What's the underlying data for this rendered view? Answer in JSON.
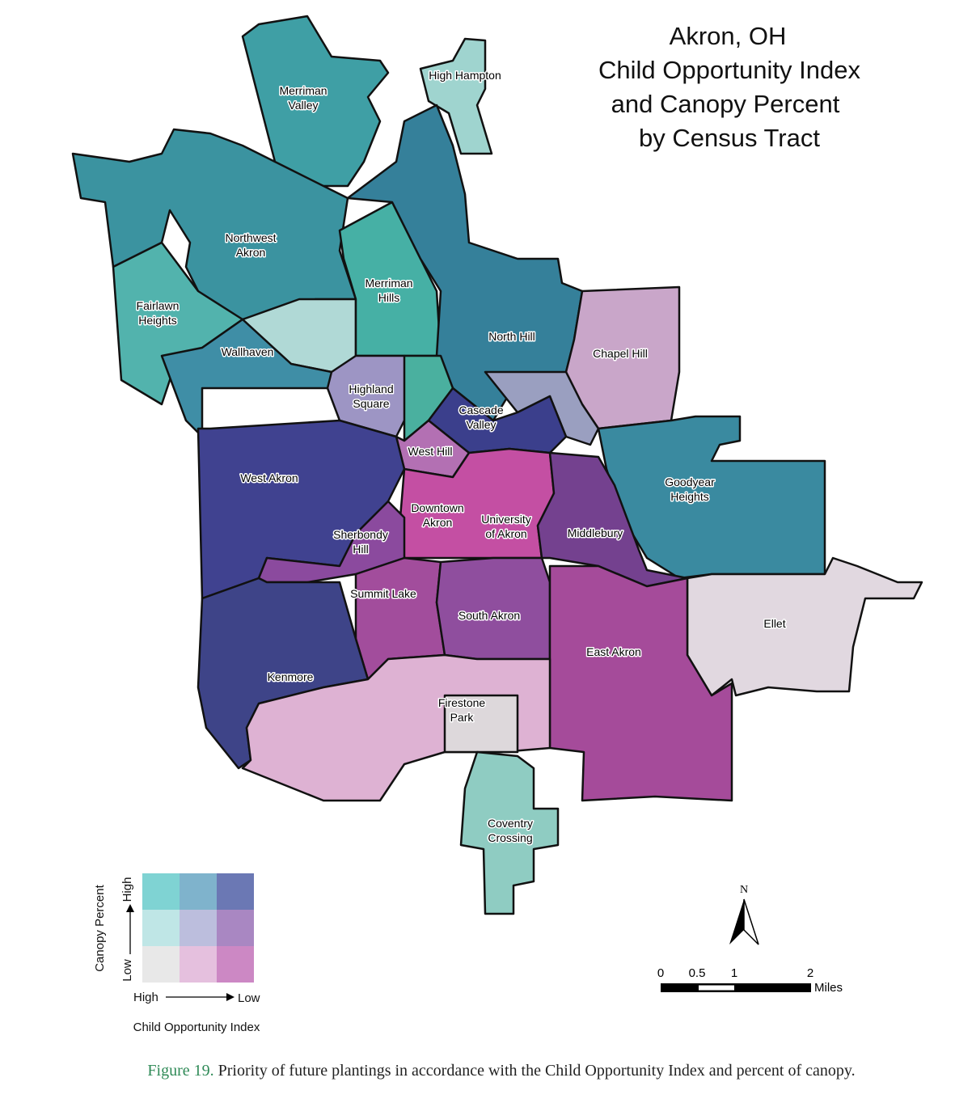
{
  "title": [
    "Akron, OH",
    "Child Opportunity Index",
    "and Canopy Percent",
    "by Census Tract"
  ],
  "neighborhoods": [
    {
      "label": [
        "Merriman",
        "Valley"
      ]
    },
    {
      "label": [
        "High Hampton"
      ]
    },
    {
      "label": [
        "Northwest",
        "Akron"
      ]
    },
    {
      "label": [
        "Fairlawn",
        "Heights"
      ]
    },
    {
      "label": [
        "Merriman",
        "Hills"
      ]
    },
    {
      "label": [
        "North Hill"
      ]
    },
    {
      "label": [
        "Chapel Hill"
      ]
    },
    {
      "label": [
        "Wallhaven"
      ]
    },
    {
      "label": [
        "Highland",
        "Square"
      ]
    },
    {
      "label": [
        "Cascade",
        "Valley"
      ]
    },
    {
      "label": [
        "West Hill"
      ]
    },
    {
      "label": [
        "West Akron"
      ]
    },
    {
      "label": [
        "Goodyear",
        "Heights"
      ]
    },
    {
      "label": [
        "Downtown",
        "Akron"
      ]
    },
    {
      "label": [
        "University",
        "of Akron"
      ]
    },
    {
      "label": [
        "Sherbondy",
        "Hill"
      ]
    },
    {
      "label": [
        "Middlebury"
      ]
    },
    {
      "label": [
        "Summit Lake"
      ]
    },
    {
      "label": [
        "South Akron"
      ]
    },
    {
      "label": [
        "Ellet"
      ]
    },
    {
      "label": [
        "East Akron"
      ]
    },
    {
      "label": [
        "Kenmore"
      ]
    },
    {
      "label": [
        "Firestone",
        "Park"
      ]
    },
    {
      "label": [
        "Coventry",
        "Crossing"
      ]
    }
  ],
  "legend": {
    "y_label": "Canopy Percent",
    "y_high": "High",
    "y_low": "Low",
    "x_high": "High",
    "x_low": "Low",
    "x_label": "Child Opportunity Index",
    "colors": [
      [
        "#7fd3d3",
        "#7fb3cc",
        "#6b78b4"
      ],
      [
        "#bfe6e6",
        "#bcbedd",
        "#a987c2"
      ],
      [
        "#e8e8e8",
        "#e5c0de",
        "#cc88c4"
      ]
    ]
  },
  "north": "N",
  "scale_bar": {
    "labels": [
      "0",
      "0.5",
      "1",
      "2"
    ],
    "unit": "Miles"
  },
  "caption": {
    "figure": "Figure 19.",
    "text": " Priority of future plantings in accordance with the Child Opportunity Index and percent of canopy."
  }
}
